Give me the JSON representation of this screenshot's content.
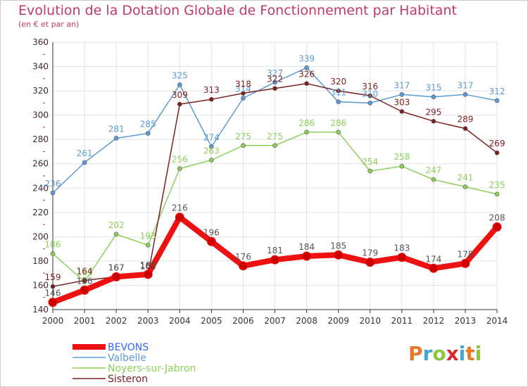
{
  "header": {
    "title": "Evolution de la Dotation Globale de Fonctionnement par Habitant",
    "subtitle": "(en € et par an)"
  },
  "logo": {
    "text": "Proxiti",
    "colors": [
      "#e8792b",
      "#3fa7d6",
      "#8cc63f",
      "#d9282f",
      "#3fa7d6",
      "#e8792b",
      "#8cc63f"
    ]
  },
  "chart_data": {
    "type": "line",
    "title": "Evolution de la Dotation Globale de Fonctionnement par Habitant",
    "subtitle": "(en € et par an)",
    "x": [
      2000,
      2001,
      2002,
      2003,
      2004,
      2005,
      2006,
      2007,
      2008,
      2009,
      2010,
      2011,
      2012,
      2013,
      2014
    ],
    "ylim": [
      140,
      360
    ],
    "yticks": [
      140,
      160,
      180,
      200,
      220,
      240,
      260,
      280,
      300,
      320,
      340,
      360
    ],
    "grid": true,
    "legend": "bottom-left",
    "series": [
      {
        "name": "BEVONS",
        "color": "#ee1111",
        "labelColor": "#555555",
        "values": [
          146,
          156,
          167,
          169,
          216,
          196,
          176,
          181,
          184,
          185,
          179,
          183,
          174,
          178,
          208
        ],
        "labels": [
          "146",
          "156",
          "167",
          "169",
          "216",
          "196",
          "176",
          "181",
          "184",
          "185",
          "179",
          "183",
          "174",
          "178",
          "208"
        ]
      },
      {
        "name": "Valbelle",
        "color": "#5b9bd5",
        "labelColor": "#5b9bd5",
        "values": [
          236,
          261,
          281,
          285,
          325,
          274,
          314,
          327,
          339,
          311,
          310,
          317,
          315,
          317,
          312
        ],
        "labels": [
          "236",
          "261",
          "281",
          "285",
          "325",
          "274",
          "314",
          "327",
          "339",
          "311",
          "310",
          "317",
          "315",
          "317",
          "312"
        ]
      },
      {
        "name": "Noyers-sur-Jabron",
        "color": "#8cd05a",
        "labelColor": "#8cd05a",
        "values": [
          186,
          163,
          202,
          193,
          256,
          263,
          275,
          275,
          286,
          286,
          254,
          258,
          247,
          241,
          235
        ],
        "labels": [
          "186",
          "163",
          "202",
          "193",
          "256",
          "263",
          "275",
          "275",
          "286",
          "286",
          "254",
          "258",
          "247",
          "241",
          "235"
        ]
      },
      {
        "name": "Sisteron",
        "color": "#7b1f1f",
        "labelColor": "#7b1f1f",
        "values": [
          159,
          164,
          167,
          168,
          309,
          313,
          318,
          322,
          326,
          320,
          316,
          303,
          295,
          289,
          269
        ],
        "labels": [
          "159",
          "164",
          "167",
          "168",
          "309",
          "313",
          "318",
          "322",
          "326",
          "320",
          "316",
          "303",
          "295",
          "289",
          "269"
        ]
      }
    ]
  }
}
